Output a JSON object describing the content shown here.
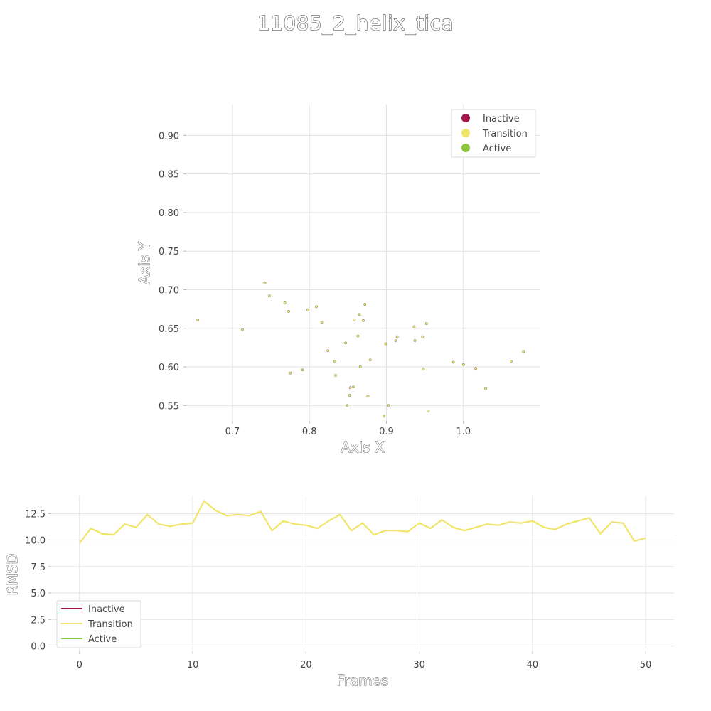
{
  "title": "11085_2_helix_tica",
  "colors": {
    "inactive": "#a3144a",
    "transition": "#f0e56a",
    "active": "#8dc63f",
    "point_stroke": "#8a8a6a"
  },
  "legend_labels": [
    "Inactive",
    "Transition",
    "Active"
  ],
  "chart_data": [
    {
      "type": "scatter",
      "xlabel": "Axis X",
      "ylabel": "Axis Y",
      "xlim": [
        0.64,
        1.1
      ],
      "ylim": [
        0.53,
        0.94
      ],
      "xticks": [
        0.7,
        0.8,
        0.9,
        1.0
      ],
      "xtick_labels": [
        "0.7",
        "0.8",
        "0.9",
        "1.0"
      ],
      "yticks": [
        0.55,
        0.6,
        0.65,
        0.7,
        0.75,
        0.8,
        0.85,
        0.9
      ],
      "ytick_labels": [
        "0.55",
        "0.60",
        "0.65",
        "0.70",
        "0.75",
        "0.80",
        "0.85",
        "0.90"
      ],
      "legend_position": "top-right",
      "series": [
        {
          "name": "Inactive",
          "points": []
        },
        {
          "name": "Transition",
          "points": [
            [
              0.655,
              0.661
            ],
            [
              0.713,
              0.648
            ],
            [
              0.742,
              0.709
            ],
            [
              0.748,
              0.692
            ],
            [
              0.768,
              0.683
            ],
            [
              0.773,
              0.672
            ],
            [
              0.775,
              0.592
            ],
            [
              0.791,
              0.596
            ],
            [
              0.798,
              0.674
            ],
            [
              0.809,
              0.678
            ],
            [
              0.816,
              0.658
            ],
            [
              0.824,
              0.621
            ],
            [
              0.833,
              0.607
            ],
            [
              0.834,
              0.589
            ],
            [
              0.847,
              0.631
            ],
            [
              0.849,
              0.55
            ],
            [
              0.852,
              0.563
            ],
            [
              0.853,
              0.573
            ],
            [
              0.857,
              0.574
            ],
            [
              0.858,
              0.661
            ],
            [
              0.863,
              0.64
            ],
            [
              0.865,
              0.668
            ],
            [
              0.866,
              0.6
            ],
            [
              0.87,
              0.66
            ],
            [
              0.872,
              0.681
            ],
            [
              0.876,
              0.562
            ],
            [
              0.879,
              0.609
            ],
            [
              0.897,
              0.536
            ],
            [
              0.899,
              0.63
            ],
            [
              0.903,
              0.55
            ],
            [
              0.912,
              0.634
            ],
            [
              0.914,
              0.639
            ],
            [
              0.936,
              0.652
            ],
            [
              0.937,
              0.634
            ],
            [
              0.947,
              0.639
            ],
            [
              0.948,
              0.597
            ],
            [
              0.952,
              0.656
            ],
            [
              0.954,
              0.543
            ],
            [
              0.987,
              0.606
            ],
            [
              1.0,
              0.603
            ],
            [
              1.016,
              0.598
            ],
            [
              1.029,
              0.572
            ],
            [
              1.062,
              0.607
            ],
            [
              1.078,
              0.62
            ]
          ]
        },
        {
          "name": "Active",
          "points": []
        }
      ]
    },
    {
      "type": "line",
      "xlabel": "Frames",
      "ylabel": "RMSD",
      "xlim": [
        -2.5,
        52.5
      ],
      "ylim": [
        -0.5,
        14.2
      ],
      "xticks": [
        0,
        10,
        20,
        30,
        40,
        50
      ],
      "xtick_labels": [
        "0",
        "10",
        "20",
        "30",
        "40",
        "50"
      ],
      "yticks": [
        0,
        2.5,
        5,
        7.5,
        10,
        12.5
      ],
      "ytick_labels": [
        "0.0",
        "2.5",
        "5.0",
        "7.5",
        "10.0",
        "12.5"
      ],
      "legend_position": "bottom-left",
      "series": [
        {
          "name": "Inactive",
          "values": []
        },
        {
          "name": "Transition",
          "values": [
            9.7,
            11.1,
            10.6,
            10.5,
            11.5,
            11.2,
            12.4,
            11.5,
            11.3,
            11.5,
            11.6,
            13.7,
            12.8,
            12.3,
            12.4,
            12.3,
            12.7,
            10.9,
            11.8,
            11.5,
            11.4,
            11.1,
            11.8,
            12.4,
            10.9,
            11.6,
            10.5,
            10.9,
            10.9,
            10.8,
            11.6,
            11.1,
            11.9,
            11.2,
            10.9,
            11.2,
            11.5,
            11.4,
            11.7,
            11.6,
            11.8,
            11.2,
            11.0,
            11.5,
            11.8,
            12.1,
            10.6,
            11.7,
            11.6,
            9.9,
            10.2
          ]
        },
        {
          "name": "Active",
          "values": []
        }
      ]
    }
  ]
}
